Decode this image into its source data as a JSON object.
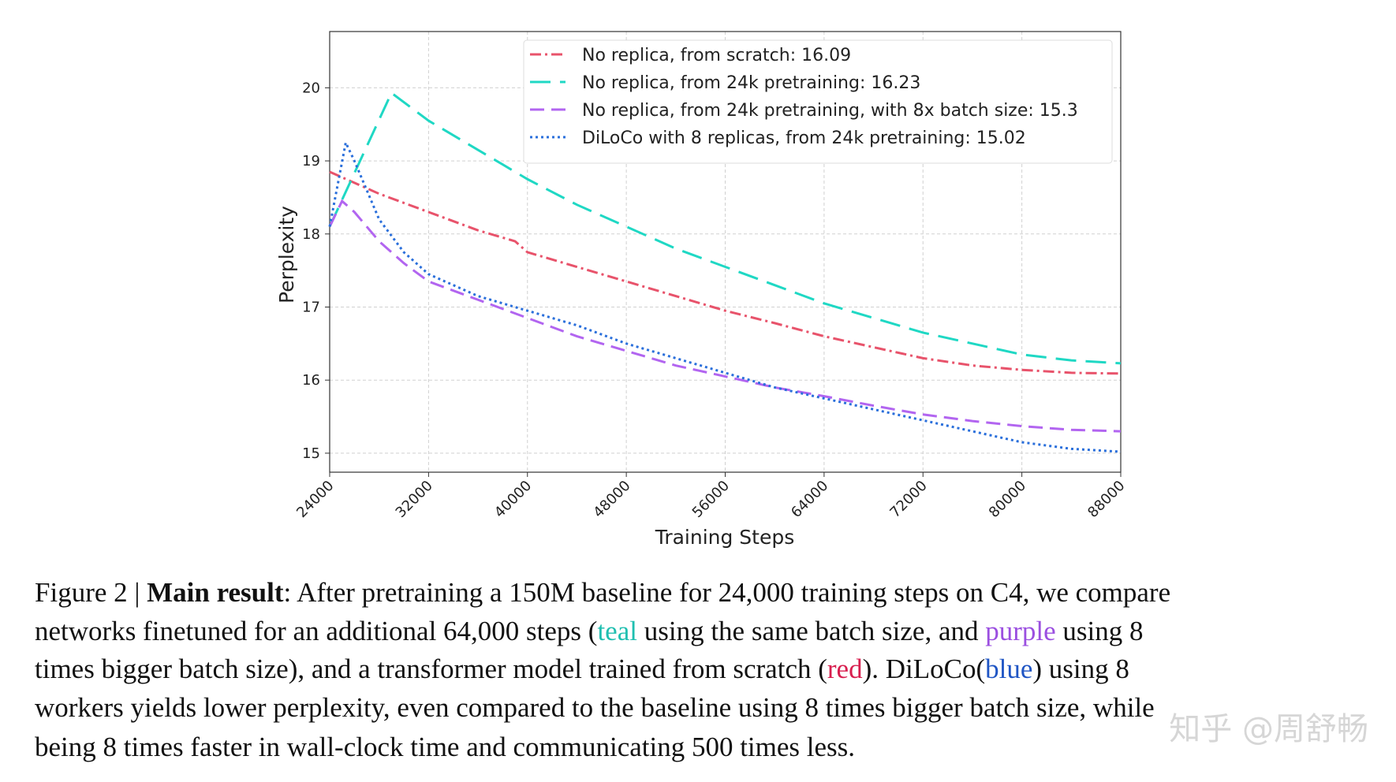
{
  "chart_data": {
    "type": "line",
    "xlabel": "Training Steps",
    "ylabel": "Perplexity",
    "xlim": [
      24000,
      88000
    ],
    "ylim": [
      14.74,
      20.77
    ],
    "xticks": [
      24000,
      32000,
      40000,
      48000,
      56000,
      64000,
      72000,
      80000,
      88000
    ],
    "yticks": [
      15,
      16,
      17,
      18,
      19,
      20
    ],
    "grid": true,
    "legend": "upper right",
    "series": [
      {
        "name": "No replica, from scratch: 16.09",
        "color": "#e8536b",
        "dash": "14,5,3,5",
        "x": [
          24000,
          26000,
          28000,
          32000,
          36000,
          39000,
          40000,
          44000,
          48000,
          52000,
          56000,
          60000,
          64000,
          68000,
          72000,
          76000,
          80000,
          84000,
          88000
        ],
        "values": [
          18.85,
          18.7,
          18.55,
          18.3,
          18.05,
          17.9,
          17.75,
          17.55,
          17.35,
          17.15,
          16.95,
          16.78,
          16.6,
          16.45,
          16.3,
          16.2,
          16.14,
          16.1,
          16.09
        ]
      },
      {
        "name": "No replica, from 24k pretraining: 16.23",
        "color": "#1fd8c4",
        "dash": "26,12",
        "x": [
          24000,
          29000,
          32000,
          36000,
          40000,
          44000,
          48000,
          52000,
          56000,
          60000,
          64000,
          68000,
          72000,
          76000,
          80000,
          84000,
          88000
        ],
        "values": [
          18.1,
          19.93,
          19.55,
          19.15,
          18.75,
          18.4,
          18.1,
          17.8,
          17.55,
          17.3,
          17.05,
          16.85,
          16.65,
          16.5,
          16.35,
          16.27,
          16.23
        ]
      },
      {
        "name": "No replica, from 24k pretraining, with 8x batch size: 15.3",
        "color": "#b265f0",
        "dash": "18,9",
        "x": [
          24000,
          25000,
          26000,
          28000,
          30000,
          32000,
          36000,
          40000,
          44000,
          48000,
          52000,
          56000,
          60000,
          64000,
          68000,
          72000,
          76000,
          80000,
          84000,
          88000
        ],
        "values": [
          18.1,
          18.45,
          18.3,
          17.9,
          17.6,
          17.35,
          17.1,
          16.85,
          16.6,
          16.4,
          16.2,
          16.05,
          15.9,
          15.78,
          15.65,
          15.53,
          15.44,
          15.37,
          15.32,
          15.3
        ]
      },
      {
        "name": "DiLoCo with 8 replicas, from 24k pretraining: 15.02",
        "color": "#2a6fdb",
        "dash": "3,4",
        "x": [
          24000,
          25300,
          26000,
          28000,
          30000,
          32000,
          36000,
          40000,
          44000,
          48000,
          52000,
          56000,
          60000,
          64000,
          68000,
          72000,
          76000,
          80000,
          84000,
          88000
        ],
        "values": [
          18.1,
          19.25,
          19.0,
          18.2,
          17.75,
          17.45,
          17.15,
          16.95,
          16.75,
          16.5,
          16.3,
          16.1,
          15.9,
          15.75,
          15.6,
          15.45,
          15.3,
          15.15,
          15.06,
          15.02
        ]
      }
    ]
  },
  "caption": {
    "lines": [
      [
        {
          "text": "Figure 2 | "
        },
        {
          "text": "Main result",
          "bold": true
        },
        {
          "text": ": After pretraining a 150M baseline for 24,000 training steps on C4, we compare"
        }
      ],
      [
        {
          "text": "networks finetuned for an additional 64,000 steps ("
        },
        {
          "text": "teal",
          "color": "#1fbfb0"
        },
        {
          "text": " using the same batch size, and "
        },
        {
          "text": "purple",
          "color": "#9b4fe0"
        },
        {
          "text": " using 8"
        }
      ],
      [
        {
          "text": "times bigger batch size), and a transformer model trained from scratch ("
        },
        {
          "text": "red",
          "color": "#d81f4f"
        },
        {
          "text": "). DiLoCo("
        },
        {
          "text": "blue",
          "color": "#1f55c4"
        },
        {
          "text": ") using 8"
        }
      ],
      [
        {
          "text": "workers yields lower perplexity, even compared to the baseline using 8 times bigger batch size, while"
        }
      ],
      [
        {
          "text": "being 8 times faster in wall-clock time and communicating 500 times less."
        }
      ]
    ]
  },
  "watermark": "知乎 @周舒畅"
}
